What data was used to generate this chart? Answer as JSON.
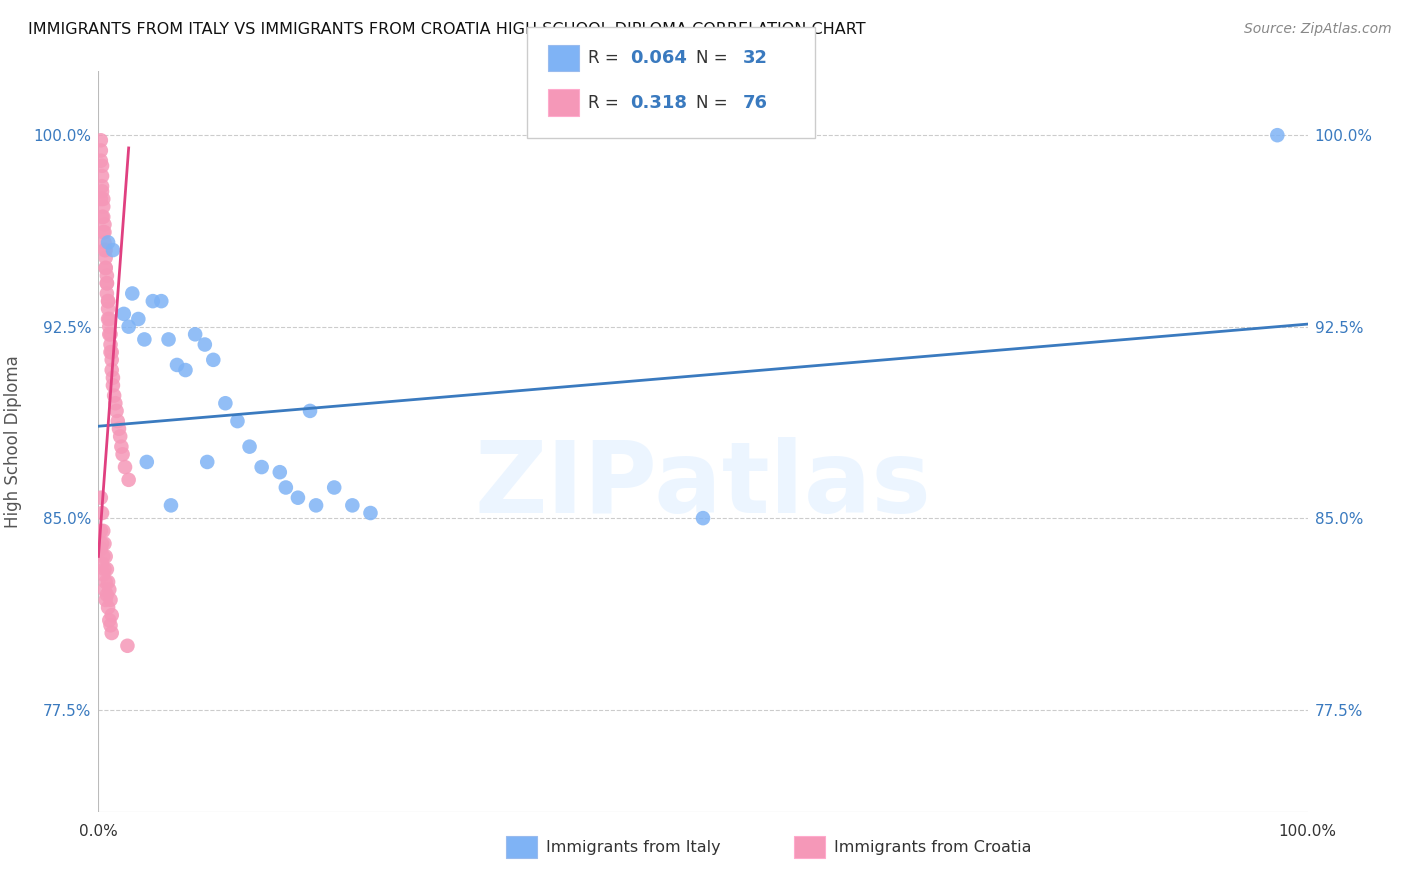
{
  "title": "IMMIGRANTS FROM ITALY VS IMMIGRANTS FROM CROATIA HIGH SCHOOL DIPLOMA CORRELATION CHART",
  "source": "Source: ZipAtlas.com",
  "ylabel": "High School Diploma",
  "ytick_values": [
    0.775,
    0.85,
    0.925,
    1.0
  ],
  "xlim": [
    0.0,
    1.0
  ],
  "ylim": [
    0.735,
    1.025
  ],
  "legend_italy_R": "0.064",
  "legend_italy_N": "32",
  "legend_croatia_R": "0.318",
  "legend_croatia_N": "76",
  "italy_color": "#7fb3f5",
  "croatia_color": "#f598b8",
  "trendline_italy_color": "#3a7abf",
  "trendline_croatia_color": "#e04080",
  "watermark": "ZIPatlas",
  "italy_trendline_x": [
    0.0,
    1.0
  ],
  "italy_trendline_y": [
    0.886,
    0.926
  ],
  "croatia_trendline_x": [
    0.0,
    0.025
  ],
  "croatia_trendline_y": [
    0.835,
    0.995
  ],
  "italy_scatter_x": [
    0.008,
    0.012,
    0.021,
    0.025,
    0.028,
    0.033,
    0.038,
    0.045,
    0.052,
    0.058,
    0.065,
    0.072,
    0.08,
    0.088,
    0.095,
    0.105,
    0.115,
    0.125,
    0.135,
    0.15,
    0.155,
    0.165,
    0.18,
    0.195,
    0.21,
    0.225,
    0.175,
    0.09,
    0.04,
    0.06,
    0.5,
    0.975
  ],
  "italy_scatter_y": [
    0.958,
    0.955,
    0.93,
    0.925,
    0.938,
    0.928,
    0.92,
    0.935,
    0.935,
    0.92,
    0.91,
    0.908,
    0.922,
    0.918,
    0.912,
    0.895,
    0.888,
    0.878,
    0.87,
    0.868,
    0.862,
    0.858,
    0.855,
    0.862,
    0.855,
    0.852,
    0.892,
    0.872,
    0.872,
    0.855,
    0.85,
    1.0
  ],
  "croatia_scatter_x": [
    0.002,
    0.002,
    0.002,
    0.003,
    0.003,
    0.003,
    0.003,
    0.004,
    0.004,
    0.004,
    0.005,
    0.005,
    0.005,
    0.006,
    0.006,
    0.006,
    0.007,
    0.007,
    0.007,
    0.008,
    0.008,
    0.008,
    0.009,
    0.009,
    0.01,
    0.01,
    0.011,
    0.011,
    0.012,
    0.012,
    0.013,
    0.014,
    0.015,
    0.016,
    0.017,
    0.018,
    0.019,
    0.02,
    0.022,
    0.025,
    0.002,
    0.003,
    0.004,
    0.005,
    0.006,
    0.007,
    0.008,
    0.009,
    0.01,
    0.011,
    0.002,
    0.003,
    0.004,
    0.005,
    0.006,
    0.007,
    0.008,
    0.009,
    0.01,
    0.011,
    0.002,
    0.003,
    0.004,
    0.005,
    0.006,
    0.007,
    0.008,
    0.009,
    0.01,
    0.011,
    0.002,
    0.003,
    0.004,
    0.005,
    0.006,
    0.024
  ],
  "croatia_scatter_y": [
    0.998,
    0.994,
    0.99,
    0.988,
    0.984,
    0.98,
    0.978,
    0.975,
    0.972,
    0.968,
    0.965,
    0.962,
    0.958,
    0.955,
    0.952,
    0.948,
    0.945,
    0.942,
    0.938,
    0.935,
    0.932,
    0.928,
    0.925,
    0.922,
    0.918,
    0.915,
    0.912,
    0.908,
    0.905,
    0.902,
    0.898,
    0.895,
    0.892,
    0.888,
    0.885,
    0.882,
    0.878,
    0.875,
    0.87,
    0.865,
    0.975,
    0.968,
    0.962,
    0.955,
    0.948,
    0.942,
    0.935,
    0.928,
    0.922,
    0.915,
    0.858,
    0.852,
    0.845,
    0.84,
    0.835,
    0.83,
    0.825,
    0.822,
    0.818,
    0.812,
    0.845,
    0.84,
    0.835,
    0.83,
    0.825,
    0.82,
    0.815,
    0.81,
    0.808,
    0.805,
    0.838,
    0.832,
    0.828,
    0.822,
    0.818,
    0.8
  ]
}
